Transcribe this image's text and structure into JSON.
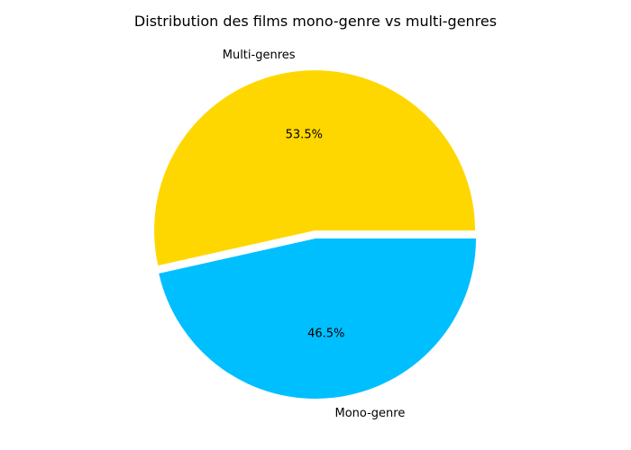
{
  "chart_data": {
    "type": "pie",
    "title": "Distribution des films mono-genre vs multi-genres",
    "slices": [
      {
        "label": "Multi-genres",
        "value": 53.5,
        "pct_label": "53.5%",
        "color": "#FFD700",
        "exploded": true
      },
      {
        "label": "Mono-genre",
        "value": 46.5,
        "pct_label": "46.5%",
        "color": "#00BFFF",
        "exploded": false
      }
    ],
    "start_angle_deg": 0,
    "direction": "counterclockwise"
  }
}
